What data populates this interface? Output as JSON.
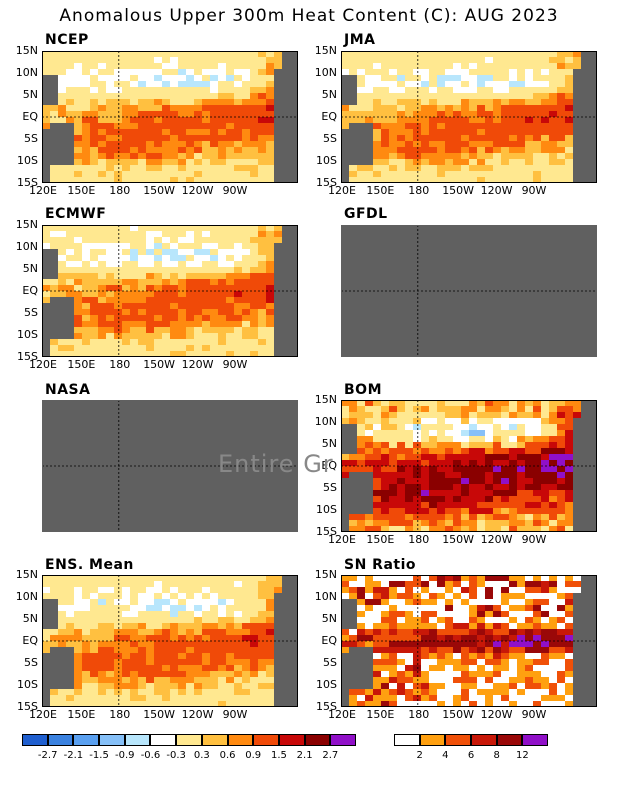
{
  "title": "Anomalous Upper 300m Heat Content (C): AUG 2023",
  "panels": [
    {
      "label": "NCEP",
      "has_data": true,
      "pattern": "mild"
    },
    {
      "label": "JMA",
      "has_data": true,
      "pattern": "mild"
    },
    {
      "label": "ECMWF",
      "has_data": true,
      "pattern": "mild"
    },
    {
      "label": "GFDL",
      "has_data": false
    },
    {
      "label": "NASA",
      "has_data": false
    },
    {
      "label": "BOM",
      "has_data": true,
      "pattern": "strong"
    },
    {
      "label": "ENS. Mean",
      "has_data": true,
      "pattern": "mild"
    },
    {
      "label": "SN Ratio",
      "has_data": true,
      "pattern": "sn"
    }
  ],
  "missing_message": "Entire Gr",
  "axes": {
    "lat_ticks": [
      "15N",
      "10N",
      "5N",
      "EQ",
      "5S",
      "10S",
      "15S"
    ],
    "lon_ticks": [
      "120E",
      "150E",
      "180",
      "150W",
      "120W",
      "90W"
    ]
  },
  "colorbar_anomaly": {
    "colors": [
      "#1f5fcf",
      "#3b82e0",
      "#5aa0f0",
      "#86c0f8",
      "#b8e6fc",
      "#ffffff",
      "#ffe890",
      "#ffc040",
      "#ff8a10",
      "#f04a08",
      "#c80808",
      "#8a0000",
      "#9010c8"
    ],
    "labels": [
      "-2.7",
      "-2.1",
      "-1.5",
      "-0.9",
      "-0.6",
      "-0.3",
      "0.3",
      "0.6",
      "0.9",
      "1.5",
      "2.1",
      "2.7"
    ]
  },
  "colorbar_sn": {
    "colors": [
      "#ffffff",
      "#ffa010",
      "#f05008",
      "#c81808",
      "#9a0808",
      "#9010c8"
    ],
    "labels": [
      "2",
      "4",
      "6",
      "8",
      "12"
    ]
  },
  "chart_data": {
    "type": "heatmap",
    "title": "Anomalous Upper 300m Heat Content (C): AUG 2023",
    "variable": "upper 300m heat content anomaly",
    "units": "C",
    "month": "AUG 2023",
    "lat_range": [
      "15S",
      "15N"
    ],
    "lon_range": [
      "120E",
      "80W"
    ],
    "models": [
      "NCEP",
      "JMA",
      "ECMWF",
      "GFDL",
      "NASA",
      "BOM",
      "ENS. Mean",
      "SN Ratio"
    ],
    "missing_models": [
      "GFDL",
      "NASA"
    ],
    "anomaly_levels": [
      -2.7,
      -2.1,
      -1.5,
      -0.9,
      -0.6,
      -0.3,
      0.3,
      0.6,
      0.9,
      1.5,
      2.1,
      2.7
    ],
    "sn_levels": [
      2,
      4,
      6,
      8,
      12
    ],
    "land_color": "#606060",
    "missing_color": "#606060"
  }
}
